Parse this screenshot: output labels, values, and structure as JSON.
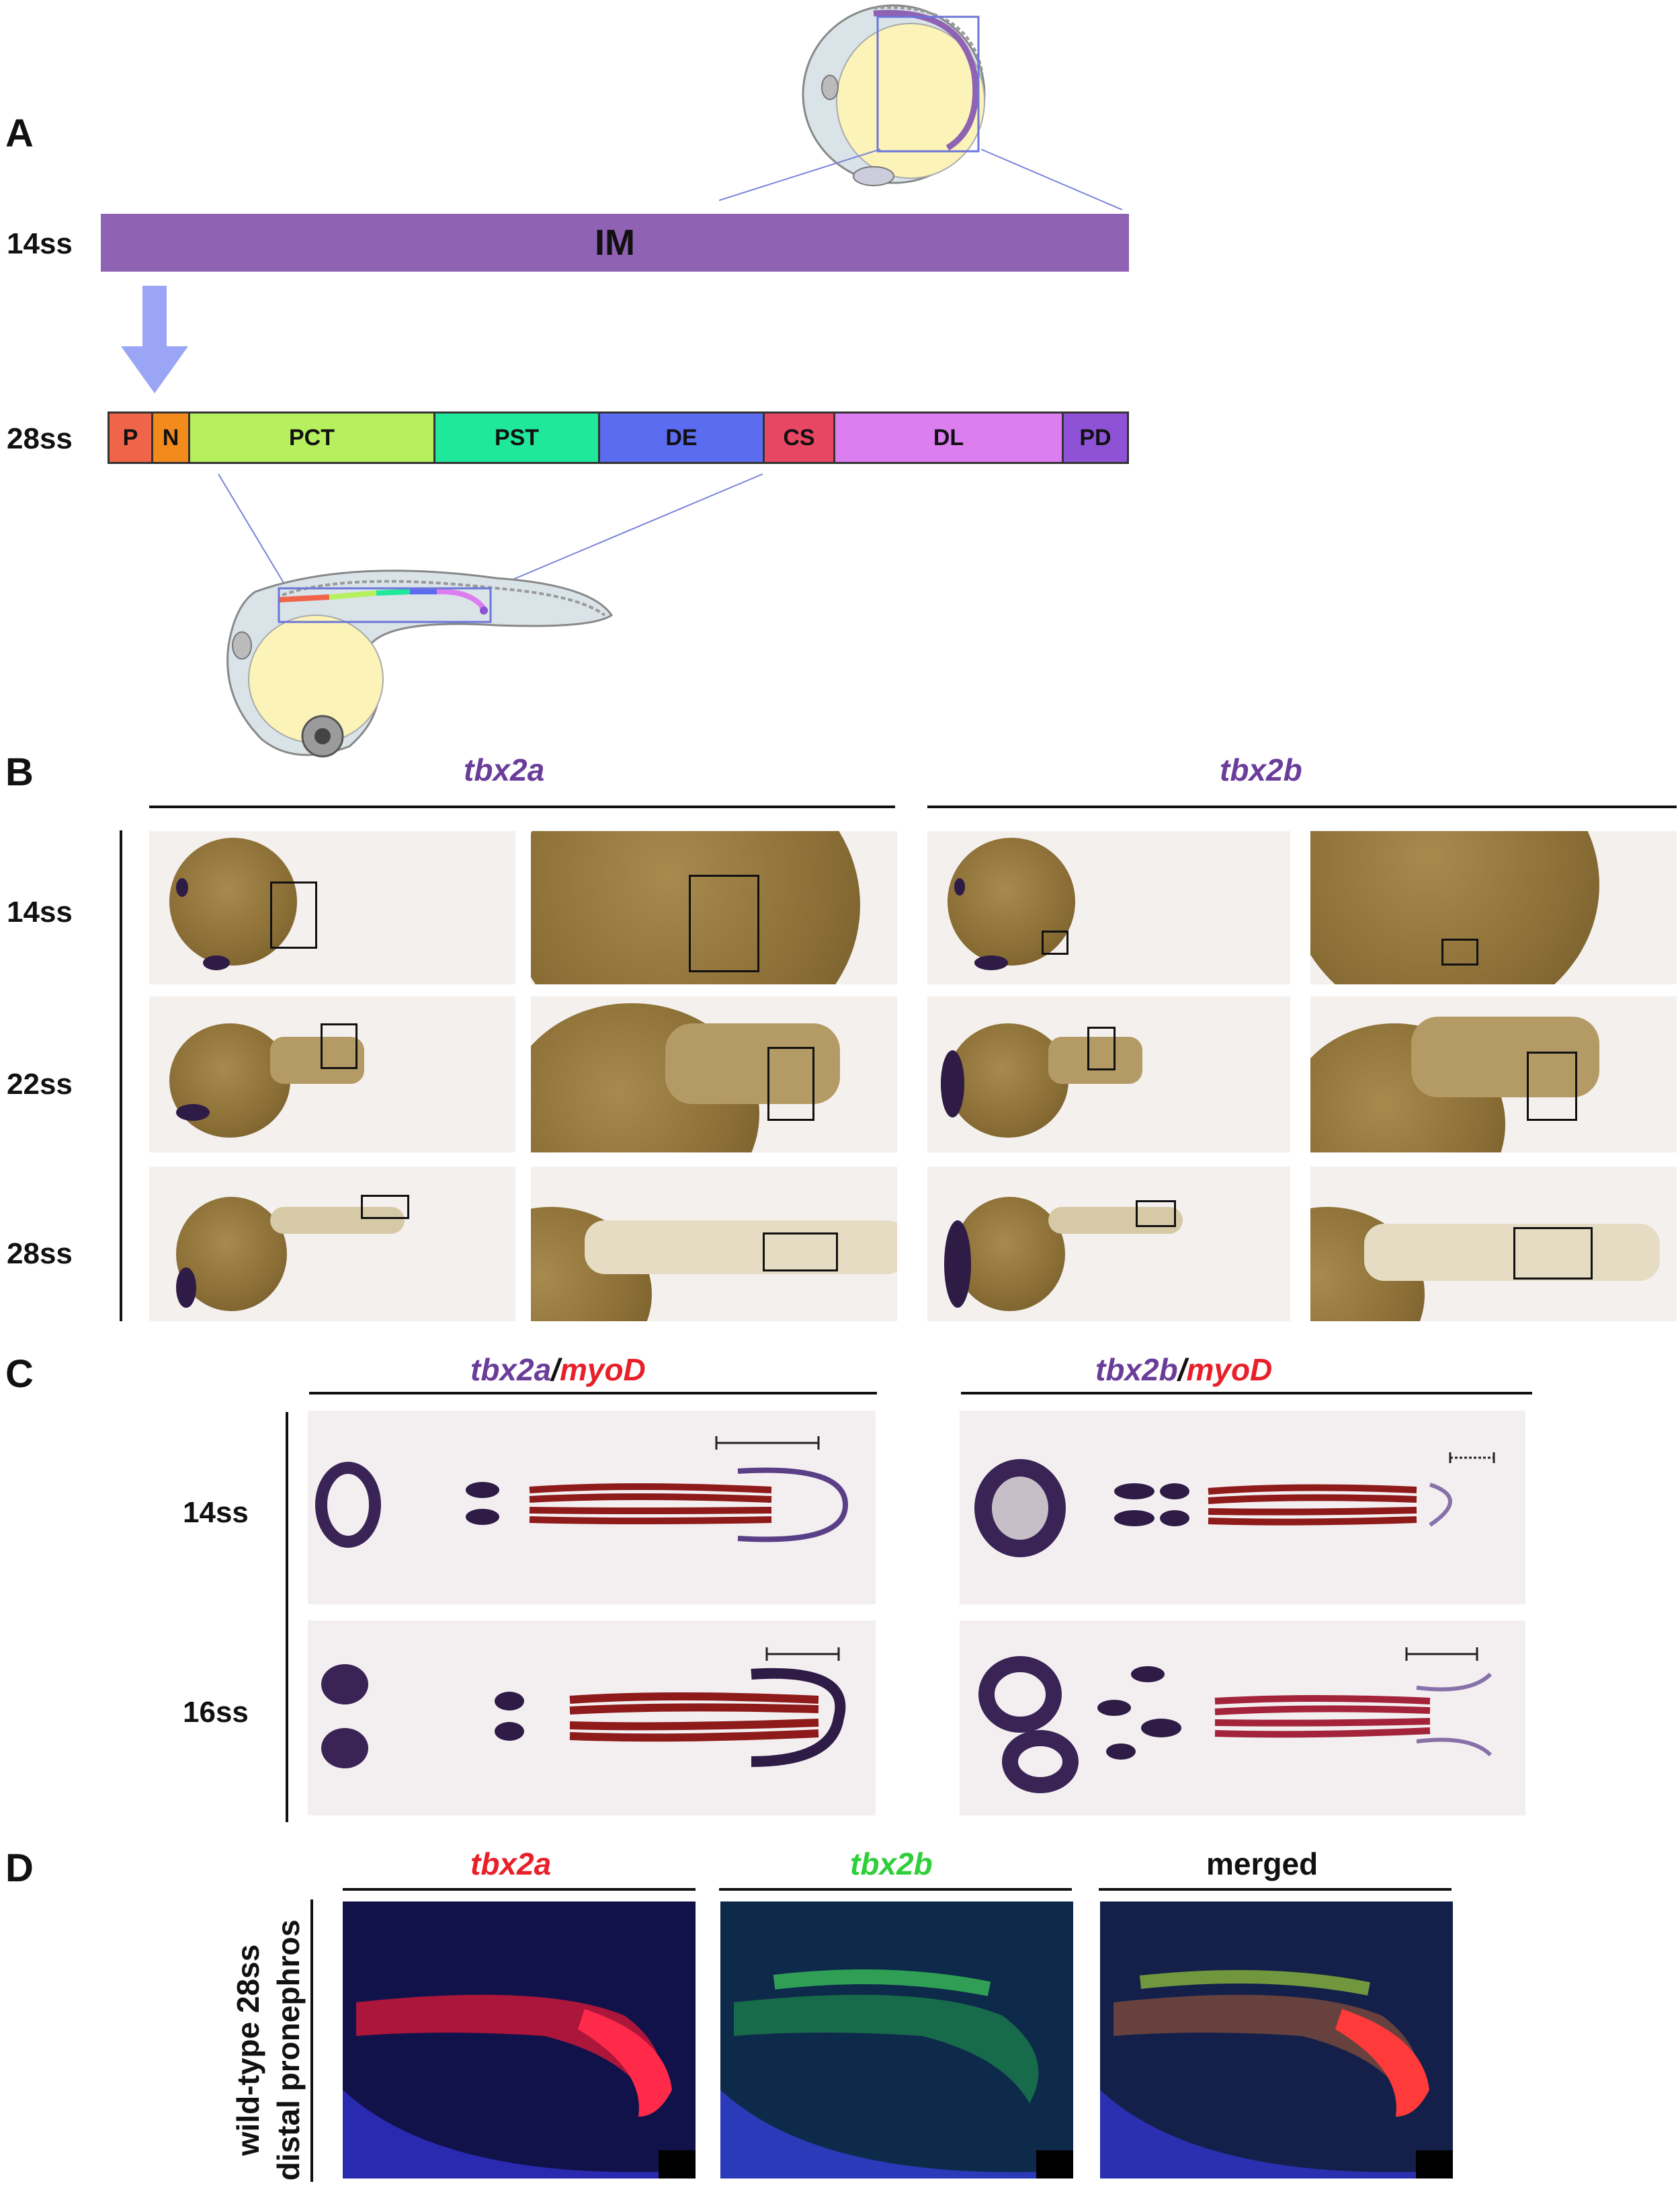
{
  "panelA": {
    "letter": "A",
    "stage14": "14ss",
    "stage28": "28ss",
    "im_label": "IM",
    "segments": [
      {
        "label": "P",
        "color": "#f06449"
      },
      {
        "label": "N",
        "color": "#f28a1c"
      },
      {
        "label": "PCT",
        "color": "#b7f05f"
      },
      {
        "label": "PST",
        "color": "#1fe89a"
      },
      {
        "label": "DE",
        "color": "#5b6cf0"
      },
      {
        "label": "CS",
        "color": "#e84763"
      },
      {
        "label": "DL",
        "color": "#dd7ef0"
      },
      {
        "label": "PD",
        "color": "#8e52d6"
      }
    ],
    "im_color": "#8f62b3",
    "arrow_color": "#9aa6f5"
  },
  "panelB": {
    "letter": "B",
    "gene_a": "tbx2a",
    "gene_b": "tbx2b",
    "stages": [
      "14ss",
      "22ss",
      "28ss"
    ]
  },
  "panelC": {
    "letter": "C",
    "title_a_gene": "tbx2a",
    "title_b_gene": "tbx2b",
    "slash": "/",
    "myod": "myoD",
    "stages": [
      "14ss",
      "16ss"
    ]
  },
  "panelD": {
    "letter": "D",
    "title_red": "tbx2a",
    "title_green": "tbx2b",
    "title_merged": "merged",
    "side_line1": "wild-type 28ss",
    "side_line2": "distal pronephros",
    "colors": {
      "red": "#e8202a",
      "green": "#2fcf3a",
      "purple": "#6a3d9a"
    }
  }
}
